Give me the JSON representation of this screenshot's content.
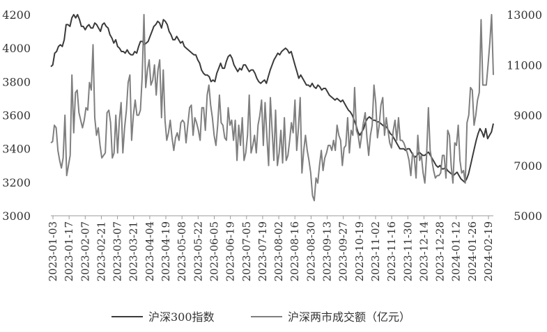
{
  "chart_data": {
    "type": "line",
    "title": "",
    "xlabel": "",
    "ylabel": "",
    "y2label": "",
    "ylim": [
      3000,
      4200
    ],
    "y2lim": [
      5000,
      13000
    ],
    "yticks": [
      "3000",
      "3200",
      "3400",
      "3600",
      "3800",
      "4000",
      "4200"
    ],
    "y2ticks": [
      "5000",
      "7000",
      "9000",
      "11000",
      "13000"
    ],
    "x_tick_labels": [
      "2023-01-03",
      "2023-01-17",
      "2023-02-07",
      "2023-02-21",
      "2023-03-07",
      "2023-03-21",
      "2023-04-04",
      "2023-04-19",
      "2023-05-08",
      "2023-05-22",
      "2023-06-05",
      "2023-06-19",
      "2023-07-05",
      "2023-07-19",
      "2023-08-02",
      "2023-08-16",
      "2023-08-30",
      "2023-09-13",
      "2023-09-27",
      "2023-10-19",
      "2023-11-02",
      "2023-11-16",
      "2023-11-30",
      "2023-12-14",
      "2023-12-28",
      "2024-01-12",
      "2024-01-26",
      "2024-02-19"
    ],
    "grid": false,
    "legend_position": "bottom",
    "series": [
      {
        "name": "沪深300指数",
        "axis": "left",
        "color": "#3a3a3a",
        "values": [
          3890,
          3900,
          3970,
          3980,
          4010,
          4020,
          4010,
          4050,
          4140,
          4140,
          4130,
          4180,
          4200,
          4180,
          4200,
          4170,
          4130,
          4130,
          4110,
          4130,
          4140,
          4120,
          4120,
          4150,
          4140,
          4120,
          4100,
          4140,
          4150,
          4130,
          4120,
          4080,
          4060,
          4030,
          4050,
          4010,
          4000,
          3980,
          3980,
          3970,
          3990,
          3970,
          3960,
          3960,
          3980,
          3970,
          4010,
          4040,
          4040,
          4020,
          4030,
          4040,
          4070,
          4100,
          4130,
          4140,
          4160,
          4150,
          4120,
          4170,
          4160,
          4140,
          4100,
          4080,
          4050,
          4050,
          4070,
          4050,
          4030,
          4040,
          4010,
          4000,
          3990,
          3980,
          3970,
          3960,
          3960,
          3930,
          3910,
          3870,
          3850,
          3840,
          3840,
          3830,
          3800,
          3810,
          3800,
          3850,
          3880,
          3910,
          3880,
          3880,
          3920,
          3950,
          3960,
          3940,
          3900,
          3880,
          3860,
          3880,
          3870,
          3900,
          3900,
          3880,
          3860,
          3870,
          3870,
          3850,
          3820,
          3800,
          3790,
          3800,
          3810,
          3790,
          3830,
          3870,
          3900,
          3930,
          3950,
          3970,
          3960,
          3980,
          3990,
          4000,
          3990,
          3970,
          3980,
          3940,
          3900,
          3860,
          3820,
          3840,
          3820,
          3800,
          3780,
          3780,
          3770,
          3790,
          3770,
          3760,
          3780,
          3770,
          3750,
          3760,
          3760,
          3740,
          3720,
          3710,
          3700,
          3690,
          3700,
          3690,
          3680,
          3690,
          3670,
          3650,
          3630,
          3620,
          3600,
          3570,
          3540,
          3500,
          3480,
          3500,
          3520,
          3560,
          3580,
          3590,
          3580,
          3570,
          3570,
          3560,
          3560,
          3550,
          3540,
          3530,
          3530,
          3510,
          3490,
          3480,
          3460,
          3440,
          3420,
          3400,
          3400,
          3400,
          3390,
          3400,
          3400,
          3380,
          3360,
          3350,
          3360,
          3380,
          3370,
          3360,
          3360,
          3370,
          3380,
          3360,
          3340,
          3320,
          3300,
          3290,
          3300,
          3280,
          3280,
          3290,
          3270,
          3260,
          3250,
          3240,
          3250,
          3260,
          3240,
          3220,
          3210,
          3200,
          3220,
          3250,
          3300,
          3350,
          3400,
          3450,
          3490,
          3520,
          3500,
          3470,
          3520,
          3460,
          3480,
          3500,
          3550
        ]
      },
      {
        "name": "沪深两市成交额（亿元）",
        "axis": "right",
        "color": "#7f7f7f",
        "values": [
          7900,
          7950,
          8600,
          8500,
          7600,
          7200,
          6900,
          7300,
          9000,
          6600,
          7000,
          7400,
          10600,
          8300,
          9900,
          10000,
          9100,
          8800,
          8500,
          8800,
          9300,
          9200,
          10300,
          10000,
          11800,
          8900,
          8200,
          8500,
          7800,
          7300,
          7400,
          7500,
          9100,
          9200,
          8700,
          7300,
          7500,
          9000,
          7500,
          8800,
          9500,
          7500,
          8500,
          9200,
          10300,
          10600,
          8000,
          9000,
          9600,
          9000,
          9000,
          9200,
          10500,
          13000,
          10100,
          10800,
          11200,
          10200,
          10400,
          11000,
          9800,
          10800,
          11200,
          8900,
          10800,
          8800,
          8000,
          8300,
          8800,
          8100,
          7600,
          8100,
          8300,
          8000,
          8700,
          8800,
          8700,
          7900,
          8600,
          9300,
          9400,
          8200,
          8900,
          8700,
          8400,
          8000,
          9300,
          9300,
          8400,
          9800,
          10200,
          9400,
          8900,
          8200,
          7800,
          8600,
          9800,
          8700,
          8600,
          8100,
          8000,
          9300,
          8600,
          8800,
          8000,
          8800,
          7200,
          8600,
          7800,
          8900,
          7200,
          7500,
          8200,
          9800,
          7500,
          7800,
          8200,
          7500,
          8600,
          9000,
          9600,
          7800,
          9500,
          8200,
          7000,
          9700,
          8400,
          7200,
          9200,
          7000,
          7500,
          8400,
          7100,
          8900,
          7200,
          7400,
          8000,
          8700,
          8300,
          9600,
          7600,
          8500,
          9700,
          6700,
          7600,
          8200,
          7600,
          7200,
          6700,
          5800,
          5600,
          6500,
          6300,
          7000,
          7600,
          6800,
          7300,
          7500,
          7800,
          7800,
          7600,
          8000,
          7600,
          8600,
          8200,
          8000,
          7000,
          7700,
          7800,
          8900,
          7500,
          8400,
          8200,
          10100,
          8400,
          8200,
          7700,
          8200,
          8700,
          9100,
          8100,
          7400,
          8200,
          8600,
          10200,
          9500,
          8100,
          8600,
          9400,
          9700,
          8200,
          8900,
          8400,
          7900,
          7700,
          8400,
          8800,
          8000,
          8900,
          8000,
          8000,
          7900,
          7700,
          7500,
          7200,
          6600,
          7500,
          7300,
          6500,
          8200,
          7200,
          7400,
          6700,
          6300,
          7400,
          9300,
          7600,
          7200,
          6800,
          6500,
          6600,
          6600,
          6700,
          7400,
          7400,
          6500,
          8400,
          8200,
          7000,
          6300,
          7900,
          7800,
          8600,
          7200,
          6700,
          6800,
          6300,
          8700,
          9000,
          10100,
          10000,
          8600,
          9000,
          9600,
          9900,
          12800,
          10200,
          10200,
          10200,
          11000,
          11900,
          13000,
          10600
        ]
      }
    ]
  }
}
